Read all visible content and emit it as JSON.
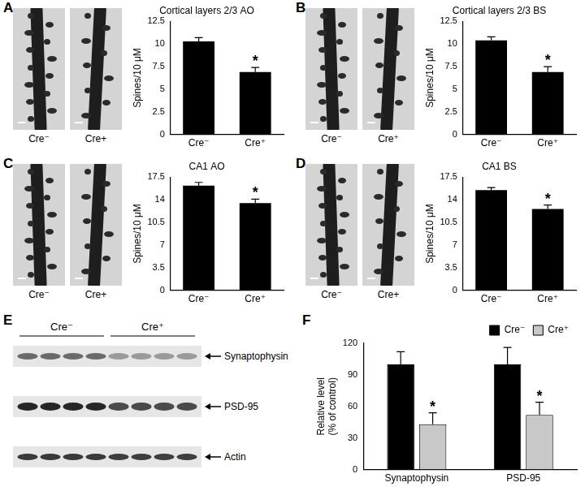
{
  "chart_data": [
    {
      "panel": "A",
      "type": "bar",
      "title": "Cortical layers 2/3 AO",
      "categories": [
        "Cre⁻",
        "Cre⁺"
      ],
      "values": [
        10.3,
        6.9
      ],
      "errors": [
        0.4,
        0.5
      ],
      "color": "#000000",
      "y_label": "Spines/10 μM",
      "ylim": [
        0,
        12.5
      ],
      "yticks": [
        0,
        2.5,
        5,
        7.5,
        10,
        12.5
      ],
      "grid": false,
      "annotations": [
        {
          "category": "Cre⁺",
          "text": "*"
        }
      ]
    },
    {
      "panel": "B",
      "type": "bar",
      "title": "Cortical layers 2/3 BS",
      "categories": [
        "Cre⁻",
        "Cre⁺"
      ],
      "values": [
        10.4,
        6.9
      ],
      "errors": [
        0.4,
        0.6
      ],
      "color": "#000000",
      "y_label": "Spines/10 μM",
      "ylim": [
        0,
        12.5
      ],
      "yticks": [
        0,
        2.5,
        5,
        7.5,
        10,
        12.5
      ],
      "grid": false,
      "annotations": [
        {
          "category": "Cre⁺",
          "text": "*"
        }
      ]
    },
    {
      "panel": "C",
      "type": "bar",
      "title": "CA1 AO",
      "categories": [
        "Cre⁻",
        "Cre⁺"
      ],
      "values": [
        16.2,
        13.5
      ],
      "errors": [
        0.5,
        0.6
      ],
      "color": "#000000",
      "y_label": "Spines/10 μM",
      "ylim": [
        0,
        17.5
      ],
      "yticks": [
        0,
        3.5,
        7,
        10.5,
        14,
        17.5
      ],
      "grid": false,
      "annotations": [
        {
          "category": "Cre⁺",
          "text": "*"
        }
      ]
    },
    {
      "panel": "D",
      "type": "bar",
      "title": "CA1 BS",
      "categories": [
        "Cre⁻",
        "Cre⁺"
      ],
      "values": [
        15.5,
        12.6
      ],
      "errors": [
        0.4,
        0.6
      ],
      "color": "#000000",
      "y_label": "Spines/10 μM",
      "ylim": [
        0,
        17.5
      ],
      "yticks": [
        0,
        3.5,
        7,
        10.5,
        14,
        17.5
      ],
      "grid": false,
      "annotations": [
        {
          "category": "Cre⁺",
          "text": "*"
        }
      ]
    },
    {
      "panel": "F",
      "type": "bar",
      "categories": [
        "Synaptophysin",
        "PSD-95"
      ],
      "series": [
        {
          "name": "Cre⁻",
          "color": "#000000",
          "values": [
            100,
            100
          ],
          "errors": [
            12,
            16
          ]
        },
        {
          "name": "Cre⁺",
          "color": "#c8c8c8",
          "values": [
            43,
            52
          ],
          "errors": [
            11,
            12
          ]
        }
      ],
      "y_label": [
        "Relative level",
        "(% of control)"
      ],
      "ylim": [
        0,
        120
      ],
      "yticks": [
        0,
        30,
        60,
        90,
        120
      ],
      "grid": false,
      "legend": "upper right",
      "annotations": [
        {
          "series": "Cre⁺",
          "category": "Synaptophysin",
          "text": "*"
        },
        {
          "series": "Cre⁺",
          "category": "PSD-95",
          "text": "*"
        }
      ]
    }
  ],
  "micrographs": [
    {
      "labels": [
        "Cre⁻",
        "Cre+"
      ]
    },
    {
      "labels": [
        "Cre⁻",
        "Cre⁺"
      ]
    },
    {
      "labels": [
        "Cre⁻",
        "Cre+"
      ]
    },
    {
      "labels": [
        "Cre⁻",
        "Cre+"
      ]
    }
  ],
  "blot": {
    "panel": "E",
    "groups": [
      "Cre⁻",
      "Cre⁺"
    ],
    "bands": [
      "Synaptophysin",
      "PSD-95",
      "Actin"
    ]
  }
}
